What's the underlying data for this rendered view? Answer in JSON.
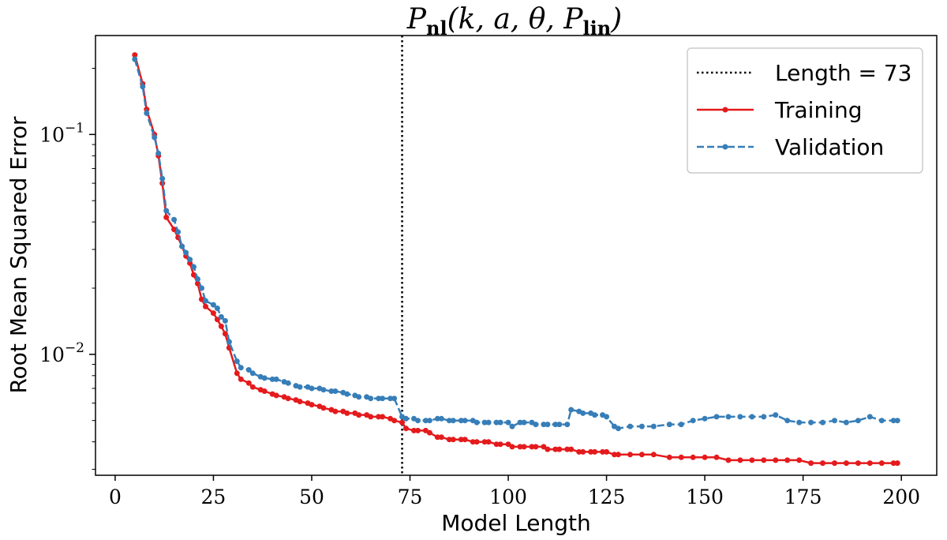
{
  "chart_data": {
    "type": "line",
    "title": "P_nl(k, a, θ, P_lin)",
    "title_parts": {
      "base": "P",
      "sub1": "nl",
      "args": "(k, a, θ, P",
      "sub2": "lin",
      "close": ")"
    },
    "xlabel": "Model Length",
    "ylabel": "Root Mean Squared Error",
    "xlim": [
      -5,
      209
    ],
    "ylim_log10": [
      -2.55,
      -0.55
    ],
    "yscale": "log",
    "xticks": [
      0,
      25,
      50,
      75,
      100,
      125,
      150,
      175,
      200
    ],
    "yticks": [
      {
        "value": 0.1,
        "base": "10",
        "exp": "−1"
      },
      {
        "value": 0.01,
        "base": "10",
        "exp": "−2"
      }
    ],
    "vline": {
      "x": 73,
      "label": "Length = 73",
      "color": "#000000",
      "style": "dotted"
    },
    "legend_position": "top-right",
    "series": [
      {
        "name": "Training",
        "color": "#e41a1c",
        "style": "solid",
        "x": [
          5,
          7,
          8,
          10,
          11,
          12,
          13,
          15,
          16,
          17,
          18,
          19,
          20,
          21,
          22,
          23,
          25,
          26,
          27,
          28,
          29,
          31,
          32,
          34,
          35,
          37,
          38,
          40,
          41,
          43,
          44,
          46,
          47,
          49,
          50,
          52,
          53,
          55,
          56,
          58,
          59,
          61,
          62,
          64,
          65,
          67,
          68,
          70,
          71,
          73,
          74,
          76,
          77,
          79,
          80,
          82,
          83,
          85,
          86,
          88,
          89,
          91,
          92,
          94,
          95,
          97,
          98,
          100,
          101,
          103,
          104,
          106,
          107,
          109,
          110,
          112,
          113,
          115,
          116,
          118,
          119,
          121,
          122,
          124,
          125,
          127,
          128,
          131,
          134,
          137,
          141,
          144,
          147,
          150,
          153,
          156,
          159,
          162,
          165,
          168,
          171,
          174,
          177,
          180,
          183,
          186,
          189,
          192,
          195,
          198,
          199
        ],
        "values": [
          0.23,
          0.17,
          0.13,
          0.1,
          0.08,
          0.06,
          0.042,
          0.037,
          0.034,
          0.031,
          0.028,
          0.026,
          0.023,
          0.021,
          0.0178,
          0.0165,
          0.0154,
          0.0144,
          0.0134,
          0.0124,
          0.0107,
          0.0082,
          0.0077,
          0.0074,
          0.0071,
          0.0069,
          0.0068,
          0.0066,
          0.0065,
          0.0064,
          0.0063,
          0.0062,
          0.0061,
          0.006,
          0.0059,
          0.0058,
          0.0057,
          0.0056,
          0.0055,
          0.0055,
          0.0054,
          0.0054,
          0.0053,
          0.0053,
          0.0052,
          0.0052,
          0.0052,
          0.0051,
          0.005,
          0.0049,
          0.0046,
          0.0045,
          0.0045,
          0.0045,
          0.0044,
          0.0042,
          0.0042,
          0.0041,
          0.0041,
          0.0041,
          0.0041,
          0.004,
          0.004,
          0.004,
          0.004,
          0.0039,
          0.0039,
          0.0039,
          0.0038,
          0.0038,
          0.0038,
          0.0038,
          0.0038,
          0.0038,
          0.0037,
          0.0037,
          0.0037,
          0.0037,
          0.0037,
          0.0036,
          0.0036,
          0.0036,
          0.0036,
          0.0036,
          0.0036,
          0.0035,
          0.0035,
          0.0035,
          0.0035,
          0.0035,
          0.0034,
          0.0034,
          0.0034,
          0.0034,
          0.0034,
          0.0033,
          0.0033,
          0.0033,
          0.0033,
          0.0033,
          0.0033,
          0.0033,
          0.0032,
          0.0032,
          0.0032,
          0.0032,
          0.0032,
          0.0032,
          0.0032,
          0.0032,
          0.0032
        ]
      },
      {
        "name": "Validation",
        "color": "#377eb8",
        "style": "dashed",
        "x": [
          5,
          7,
          8,
          10,
          11,
          12,
          13,
          15,
          16,
          17,
          18,
          19,
          20,
          21,
          22,
          23,
          25,
          26,
          27,
          28,
          29,
          31,
          32,
          34,
          35,
          37,
          38,
          40,
          41,
          43,
          44,
          46,
          47,
          49,
          50,
          52,
          53,
          55,
          56,
          58,
          59,
          61,
          62,
          64,
          65,
          67,
          68,
          70,
          71,
          73,
          74,
          76,
          77,
          79,
          80,
          82,
          83,
          85,
          86,
          88,
          89,
          91,
          92,
          94,
          95,
          97,
          98,
          100,
          101,
          103,
          104,
          106,
          107,
          109,
          110,
          112,
          113,
          115,
          116,
          118,
          119,
          121,
          122,
          124,
          125,
          127,
          128,
          131,
          134,
          137,
          141,
          144,
          147,
          150,
          153,
          156,
          159,
          162,
          165,
          168,
          171,
          174,
          177,
          180,
          183,
          186,
          189,
          192,
          195,
          198,
          199
        ],
        "values": [
          0.22,
          0.165,
          0.125,
          0.097,
          0.082,
          0.063,
          0.045,
          0.041,
          0.036,
          0.031,
          0.029,
          0.027,
          0.025,
          0.022,
          0.02,
          0.0175,
          0.0168,
          0.0162,
          0.0148,
          0.0142,
          0.0114,
          0.0093,
          0.0087,
          0.0085,
          0.0082,
          0.0079,
          0.0078,
          0.0077,
          0.0077,
          0.0075,
          0.0074,
          0.0072,
          0.0071,
          0.0071,
          0.007,
          0.007,
          0.0069,
          0.0068,
          0.0068,
          0.0067,
          0.0066,
          0.0065,
          0.0064,
          0.0064,
          0.0063,
          0.0063,
          0.0063,
          0.0063,
          0.0063,
          0.0052,
          0.0051,
          0.0051,
          0.005,
          0.005,
          0.005,
          0.0051,
          0.0051,
          0.005,
          0.005,
          0.005,
          0.005,
          0.005,
          0.0049,
          0.0049,
          0.0049,
          0.0049,
          0.0049,
          0.0049,
          0.0047,
          0.0049,
          0.0049,
          0.0049,
          0.0048,
          0.0048,
          0.0048,
          0.0048,
          0.0048,
          0.0048,
          0.0056,
          0.0055,
          0.0054,
          0.0054,
          0.0053,
          0.0053,
          0.0052,
          0.0047,
          0.0046,
          0.0047,
          0.0047,
          0.0047,
          0.0048,
          0.0048,
          0.005,
          0.0051,
          0.0052,
          0.0052,
          0.0052,
          0.0052,
          0.0052,
          0.0053,
          0.005,
          0.0049,
          0.0049,
          0.0049,
          0.005,
          0.0049,
          0.005,
          0.0052,
          0.005,
          0.005,
          0.005
        ]
      }
    ]
  }
}
